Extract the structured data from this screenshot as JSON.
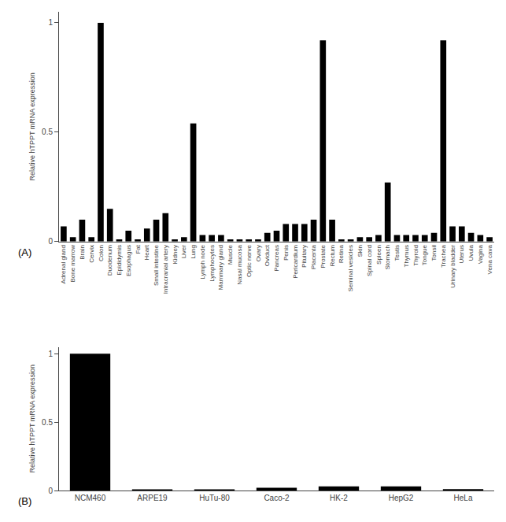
{
  "chart_data": [
    {
      "type": "bar",
      "categories": [
        "Adrenal gland",
        "Bone marrow",
        "Brain",
        "Cervix",
        "Colon",
        "Duodenum",
        "Epididymis",
        "Esophagus",
        "Fat",
        "Heart",
        "Small intestine",
        "Intracranial artery",
        "Kidney",
        "Liver",
        "Lung",
        "Lymph node",
        "Lymphocytes",
        "Mammary gland",
        "Muscle",
        "Nasal mucosa",
        "Optic nerve",
        "Ovary",
        "Oviduct",
        "Pancreas",
        "Penis",
        "Pericardium",
        "Pituitary",
        "Placenta",
        "Prostate",
        "Rectum",
        "Retina",
        "Seminal vesicles",
        "Skin",
        "Spinal cord",
        "Spleen",
        "Stomach",
        "Testis",
        "Thymus",
        "Thyroid",
        "Tongue",
        "Tonsil",
        "Trachea",
        "Urinary bladder",
        "Uterus",
        "Uvula",
        "Vagina",
        "Vena cava"
      ],
      "values": [
        0.07,
        0.02,
        0.1,
        0.02,
        1.0,
        0.15,
        0.01,
        0.05,
        0.01,
        0.06,
        0.1,
        0.13,
        0.01,
        0.02,
        0.54,
        0.03,
        0.03,
        0.03,
        0.01,
        0.01,
        0.01,
        0.01,
        0.04,
        0.05,
        0.08,
        0.08,
        0.08,
        0.1,
        0.92,
        0.1,
        0.01,
        0.01,
        0.02,
        0.02,
        0.03,
        0.27,
        0.03,
        0.03,
        0.03,
        0.03,
        0.04,
        0.92,
        0.07,
        0.07,
        0.04,
        0.03,
        0.02
      ],
      "color": "#000000",
      "ylabel": "Relative hTPPT mRNA expression",
      "ylim": [
        0,
        1.05
      ],
      "yticks": [
        0,
        0.5,
        1
      ],
      "grid": false,
      "annotations": [
        "(A)"
      ]
    },
    {
      "type": "bar",
      "categories": [
        "NCM460",
        "ARPE19",
        "HuTu-80",
        "Caco-2",
        "HK-2",
        "HepG2",
        "HeLa"
      ],
      "values": [
        1.0,
        0.005,
        0.005,
        0.02,
        0.03,
        0.03,
        0.01
      ],
      "color": "#000000",
      "ylabel": "Relative hTPPT mRNA expression",
      "ylim": [
        0,
        1.05
      ],
      "yticks": [
        0,
        0.5,
        1
      ],
      "grid": false,
      "annotations": [
        "(B)"
      ]
    }
  ]
}
